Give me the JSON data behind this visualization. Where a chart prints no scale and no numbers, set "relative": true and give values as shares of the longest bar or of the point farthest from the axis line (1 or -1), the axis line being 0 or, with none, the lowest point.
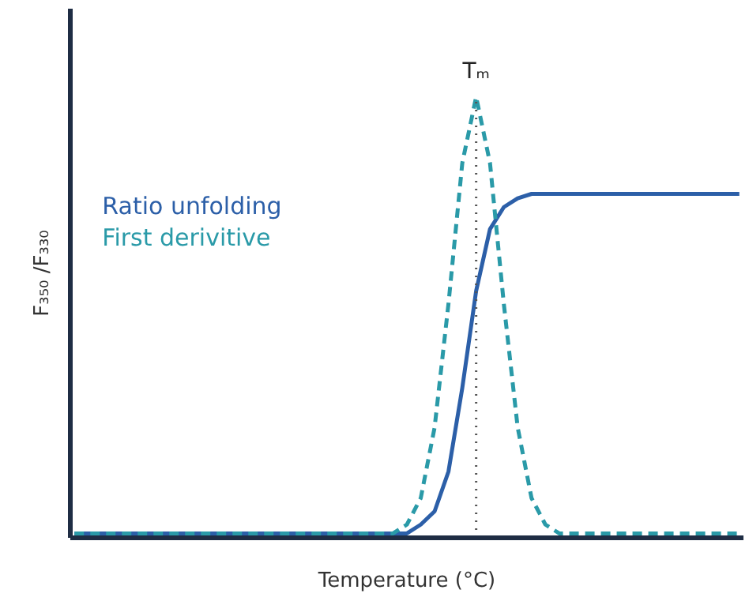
{
  "chart_data": {
    "type": "line",
    "relative": true,
    "xlabel": "Temperature (°C)",
    "ylabel": "F₃₅₀ /F₃₃₀",
    "categories": [
      null,
      null,
      null,
      null,
      null,
      null,
      null,
      null,
      null,
      null,
      null,
      null,
      null,
      null,
      null,
      null,
      null,
      null,
      null,
      null,
      null,
      null,
      null,
      null,
      null,
      null,
      null,
      null,
      null,
      null,
      null,
      null,
      null,
      null,
      null,
      null,
      null,
      null,
      null,
      null,
      null,
      null,
      null,
      null,
      null,
      null,
      null,
      null,
      null
    ],
    "series": [
      {
        "name": "Ratio unfolding",
        "color": "#2c5fa8",
        "line_style": "solid",
        "values": [
          0.01,
          0.01,
          0.01,
          0.01,
          0.01,
          0.01,
          0.01,
          0.01,
          0.01,
          0.01,
          0.01,
          0.01,
          0.01,
          0.01,
          0.01,
          0.01,
          0.01,
          0.01,
          0.01,
          0.01,
          0.01,
          0.01,
          0.01,
          0.01,
          0.01,
          0.03,
          0.06,
          0.15,
          0.34,
          0.56,
          0.7,
          0.75,
          0.77,
          0.78,
          0.78,
          0.78,
          0.78,
          0.78,
          0.78,
          0.78,
          0.78,
          0.78,
          0.78,
          0.78,
          0.78,
          0.78,
          0.78,
          0.78,
          0.78
        ]
      },
      {
        "name": "First derivitive",
        "color": "#2a9aa8",
        "line_style": "dashed",
        "values": [
          0.01,
          0.01,
          0.01,
          0.01,
          0.01,
          0.01,
          0.01,
          0.01,
          0.01,
          0.01,
          0.01,
          0.01,
          0.01,
          0.01,
          0.01,
          0.01,
          0.01,
          0.01,
          0.01,
          0.01,
          0.01,
          0.01,
          0.01,
          0.01,
          0.03,
          0.09,
          0.25,
          0.53,
          0.85,
          1.0,
          0.85,
          0.53,
          0.25,
          0.09,
          0.03,
          0.01,
          0.01,
          0.01,
          0.01,
          0.01,
          0.01,
          0.01,
          0.01,
          0.01,
          0.01,
          0.01,
          0.01,
          0.01,
          0.01
        ]
      }
    ],
    "annotations": [
      "Tₘ"
    ],
    "legend": "left",
    "marker": "none",
    "grid": false
  }
}
